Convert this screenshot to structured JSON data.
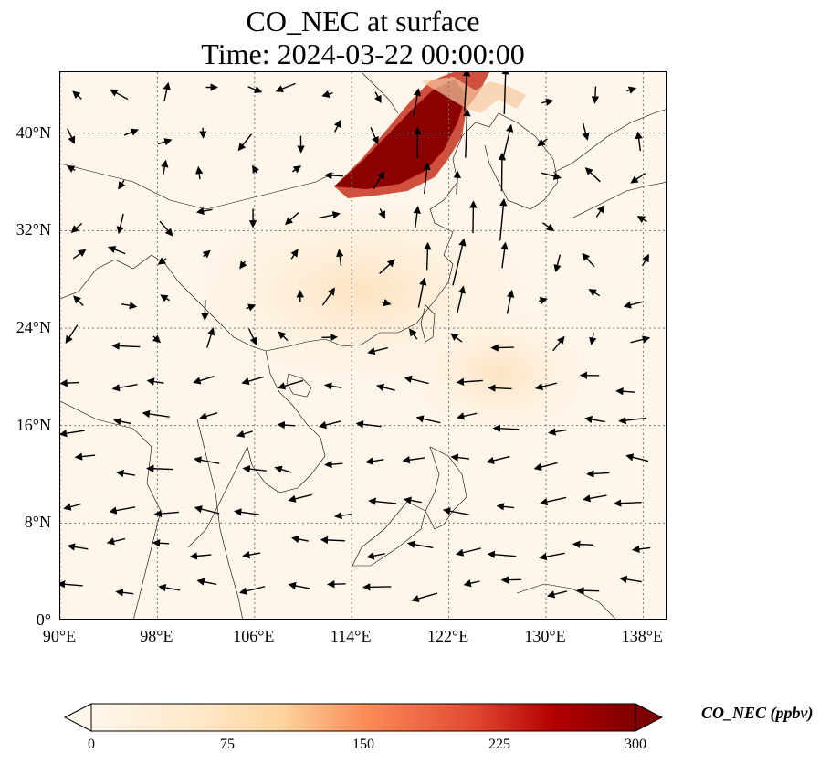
{
  "title_line1": "CO_NEC at surface",
  "title_line2": "Time: 2024-03-22 00:00:00",
  "map": {
    "lon_range": [
      90,
      140
    ],
    "lat_range": [
      0,
      45
    ],
    "lon_ticks": [
      "90°E",
      "98°E",
      "106°E",
      "114°E",
      "122°E",
      "130°E",
      "138°E"
    ],
    "lon_tick_values": [
      90,
      98,
      106,
      114,
      122,
      130,
      138
    ],
    "lat_ticks": [
      "0°",
      "8°N",
      "16°N",
      "24°N",
      "32°N",
      "40°N"
    ],
    "lat_tick_values": [
      0,
      8,
      16,
      24,
      32,
      40
    ],
    "gridlines": "dotted",
    "high_concentration_region": "North China Plain / Bohai",
    "colors": {
      "background": "#fef6ea",
      "land_tint": "#fdebd3",
      "high": "#7f0000",
      "mid": "#e34a33"
    }
  },
  "colorbar": {
    "label": "CO_NEC (ppbv)",
    "ticks": [
      "0",
      "75",
      "150",
      "225",
      "300"
    ],
    "tick_values": [
      0,
      75,
      150,
      225,
      300
    ],
    "min": 0,
    "max": 300,
    "extend": "both",
    "colormap": "OrRd"
  }
}
